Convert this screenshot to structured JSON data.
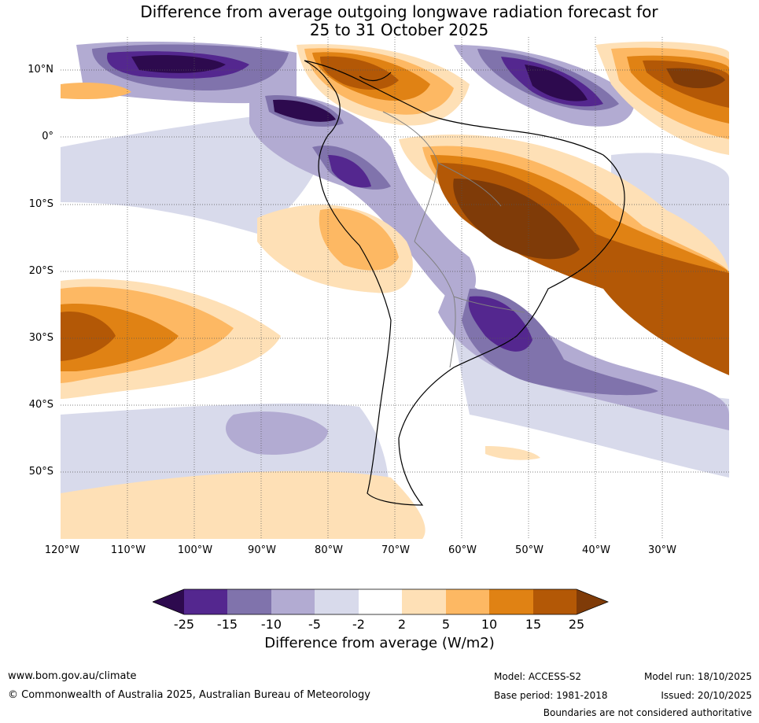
{
  "title": {
    "line1": "Difference from average outgoing longwave radiation forecast for",
    "line2": "25 to 31 October 2025"
  },
  "map": {
    "region": "South America",
    "lat_labels": [
      "10°N",
      "0°",
      "10°S",
      "20°S",
      "30°S",
      "40°S",
      "50°S"
    ],
    "lon_labels": [
      "120°W",
      "110°W",
      "100°W",
      "90°W",
      "80°W",
      "70°W",
      "60°W",
      "50°W",
      "40°W",
      "30°W"
    ]
  },
  "legend": {
    "title": "Difference from average (W/m2)",
    "ticks": [
      "-25",
      "-15",
      "-10",
      "-5",
      "-2",
      "2",
      "5",
      "10",
      "15",
      "25"
    ],
    "colors": [
      "#2d0a4e",
      "#54278f",
      "#8073ac",
      "#b2abd2",
      "#d8daeb",
      "#ffffff",
      "#fee0b6",
      "#fdb863",
      "#e08214",
      "#b35806",
      "#7f3b08"
    ]
  },
  "footer": {
    "website": "www.bom.gov.au/climate",
    "copyright": "© Commonwealth of Australia 2025, Australian Bureau of Meteorology",
    "model": "Model: ACCESS-S2",
    "base_period": "Base period: 1981-2018",
    "model_run": "Model run: 18/10/2025",
    "issued": "Issued: 20/10/2025",
    "disclaimer": "Boundaries are not considered authoritative"
  }
}
